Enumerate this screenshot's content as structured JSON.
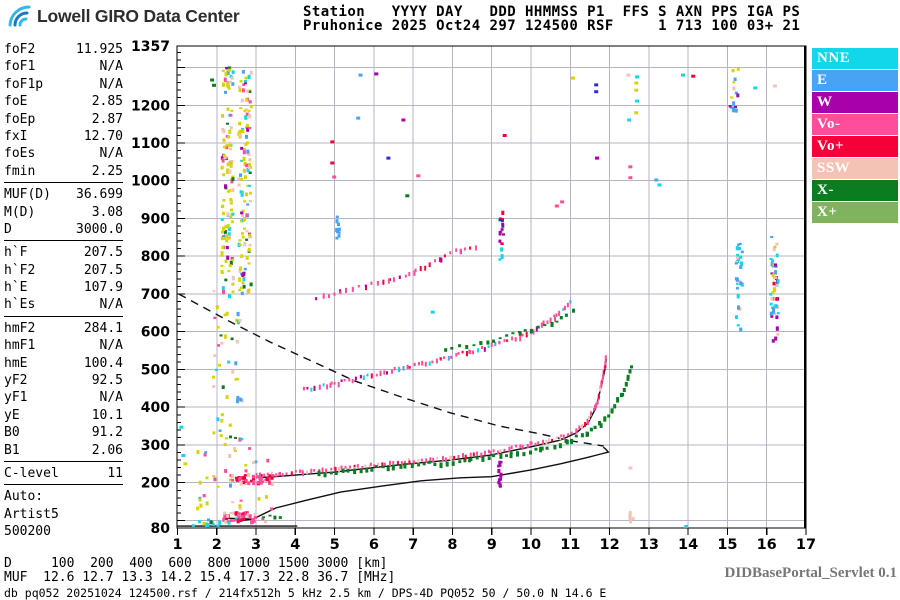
{
  "header": {
    "logo_text": "Lowell GIRO Data Center",
    "station_columns": "Station   YYYY DAY   DDD HHMMSS P1  FFS S AXN PPS IGA PS",
    "station_values": "Pruhonice 2025 Oct24 297 124500 RSF     1 713 100 03+ 21"
  },
  "params": {
    "groups": [
      [
        {
          "label": "foF2",
          "value": "11.925"
        },
        {
          "label": "foF1",
          "value": "N/A"
        },
        {
          "label": "foF1p",
          "value": "N/A"
        },
        {
          "label": "foE",
          "value": "2.85"
        },
        {
          "label": "foEp",
          "value": "2.87"
        },
        {
          "label": "fxI",
          "value": "12.70"
        },
        {
          "label": "foEs",
          "value": "N/A"
        },
        {
          "label": "fmin",
          "value": "2.25"
        }
      ],
      [
        {
          "label": "MUF(D)",
          "value": "36.699"
        },
        {
          "label": "M(D)",
          "value": "3.08"
        },
        {
          "label": "D",
          "value": "3000.0"
        }
      ],
      [
        {
          "label": "h`F",
          "value": "207.5"
        },
        {
          "label": "h`F2",
          "value": "207.5"
        },
        {
          "label": "h`E",
          "value": "107.9"
        },
        {
          "label": "h`Es",
          "value": "N/A"
        }
      ],
      [
        {
          "label": "hmF2",
          "value": "284.1"
        },
        {
          "label": "hmF1",
          "value": "N/A"
        },
        {
          "label": "hmE",
          "value": "100.4"
        },
        {
          "label": "yF2",
          "value": "92.5"
        },
        {
          "label": "yF1",
          "value": "N/A"
        },
        {
          "label": "yE",
          "value": "10.1"
        },
        {
          "label": "B0",
          "value": "91.2"
        },
        {
          "label": "B1",
          "value": "2.06"
        }
      ],
      [
        {
          "label": "C-level",
          "value": "11"
        }
      ]
    ],
    "footer_lines": [
      "Auto:",
      "Artist5",
      "500200"
    ]
  },
  "legend": {
    "items": [
      {
        "label": "NNE",
        "color": "#12d6e9"
      },
      {
        "label": "E",
        "color": "#47a3f5"
      },
      {
        "label": "W",
        "color": "#a800ab"
      },
      {
        "label": "Vo-",
        "color": "#ff4d9b"
      },
      {
        "label": "Vo+",
        "color": "#f50039"
      },
      {
        "label": "SSW",
        "color": "#f4c3b6"
      },
      {
        "label": "X-",
        "color": "#0a7d20"
      },
      {
        "label": "X+",
        "color": "#81b25d"
      }
    ]
  },
  "footer": {
    "d_label": "D",
    "d_values": [
      100,
      200,
      400,
      600,
      800,
      1000,
      1500,
      3000
    ],
    "d_unit": "[km]",
    "muf_label": "MUF",
    "muf_values": [
      "12.6",
      "12.7",
      "13.3",
      "14.2",
      "15.4",
      "17.3",
      "22.8",
      "36.7"
    ],
    "muf_unit": "[MHz]",
    "info_line": "db pq052 20251024 124500.rsf / 214fx512h 5 kHz 2.5 km / DPS-4D PQ052 50 / 50.0 N 14.6 E",
    "servlet": "DIDBasePortal_Servlet 0.1"
  },
  "chart_data": {
    "type": "scatter",
    "title": "Pruhonice DPS-4D ionogram 2025 Oct24 (297) 124500",
    "xlabel": "[MHz]",
    "ylabel": "[km]",
    "xlim": [
      1,
      17
    ],
    "ylim": [
      80,
      1357
    ],
    "grid": true,
    "grid_color": "#b4b6c6",
    "legend_position": "right",
    "x_ticks": [
      1,
      2,
      3,
      4,
      5,
      6,
      7,
      8,
      9,
      10,
      11,
      12,
      13,
      14,
      15,
      16,
      17
    ],
    "y_tick_labels": [
      1357,
      1200,
      1100,
      1000,
      900,
      800,
      700,
      600,
      500,
      400,
      300,
      200,
      80
    ],
    "colors": {
      "yellow": "#d8d400",
      "cyan": "#17d4e8",
      "blue": "#47a3f5",
      "pink": "#ff4d9b",
      "crimson": "#f50039",
      "salmon": "#f4c3b6",
      "green": "#0a7d20",
      "lgreen": "#81b25d",
      "magenta": "#a800ab",
      "navy": "#3030c0"
    },
    "lines": [
      {
        "name": "o-trace-autoscaled",
        "style": "solid",
        "points": [
          [
            3.0,
            213
          ],
          [
            3.6,
            217
          ],
          [
            4.2,
            222
          ],
          [
            5.0,
            228
          ],
          [
            5.9,
            239
          ],
          [
            6.9,
            250
          ],
          [
            7.95,
            260
          ],
          [
            8.95,
            273
          ],
          [
            10.0,
            295
          ],
          [
            10.75,
            313
          ],
          [
            11.15,
            332
          ],
          [
            11.45,
            358
          ],
          [
            11.65,
            398
          ],
          [
            11.8,
            459
          ],
          [
            11.88,
            500
          ],
          [
            11.92,
            528
          ]
        ]
      },
      {
        "name": "true-height-profile",
        "style": "solid",
        "points": [
          [
            2.6,
            99
          ],
          [
            2.93,
            104
          ],
          [
            3.5,
            133
          ],
          [
            4.3,
            154
          ],
          [
            5.15,
            175
          ],
          [
            6.2,
            191
          ],
          [
            7.2,
            205
          ],
          [
            8.2,
            213
          ],
          [
            9.0,
            216
          ],
          [
            10.0,
            234
          ],
          [
            10.75,
            250
          ],
          [
            11.4,
            266
          ],
          [
            11.78,
            276
          ],
          [
            11.97,
            281
          ],
          [
            11.9,
            289
          ],
          [
            11.84,
            294
          ]
        ]
      },
      {
        "name": "baseline",
        "style": "solid",
        "points": [
          [
            1.0,
            85
          ],
          [
            4.05,
            85
          ]
        ]
      },
      {
        "name": "e-trace-autoscaled",
        "style": "solid",
        "points": [
          [
            2.17,
            106
          ],
          [
            2.93,
            104
          ]
        ]
      },
      {
        "name": "muf3000-transmission-curve",
        "style": "dashed",
        "points": [
          [
            1.03,
            700
          ],
          [
            1.6,
            668
          ],
          [
            2.35,
            626
          ],
          [
            3.35,
            573
          ],
          [
            4.4,
            523
          ],
          [
            5.5,
            470
          ],
          [
            6.7,
            427
          ],
          [
            7.95,
            385
          ],
          [
            9.2,
            350
          ],
          [
            10.25,
            329
          ],
          [
            11.0,
            311
          ],
          [
            11.5,
            303
          ],
          [
            11.85,
            297
          ]
        ]
      }
    ],
    "dot_traces": [
      {
        "name": "f-trace-o-echoes",
        "step": 4,
        "dot": [
          2,
          4
        ],
        "colors": [
          "pink",
          "pink",
          "pink",
          "pink",
          "crimson",
          "pink",
          "salmon",
          "pink"
        ],
        "points": [
          [
            3.0,
            219
          ],
          [
            3.6,
            223
          ],
          [
            4.2,
            228
          ],
          [
            5.0,
            234
          ],
          [
            5.9,
            245
          ],
          [
            6.9,
            256
          ],
          [
            7.95,
            266
          ],
          [
            8.95,
            279
          ],
          [
            10.0,
            301
          ],
          [
            10.75,
            319
          ],
          [
            11.15,
            338
          ],
          [
            11.45,
            364
          ],
          [
            11.65,
            404
          ],
          [
            11.8,
            465
          ],
          [
            11.88,
            506
          ],
          [
            11.92,
            530
          ]
        ]
      },
      {
        "name": "f-trace-x-echoes",
        "step": 6,
        "dot": [
          3,
          4
        ],
        "colors": [
          "green"
        ],
        "points": [
          [
            4.6,
            224
          ],
          [
            5.5,
            231
          ],
          [
            6.5,
            242
          ],
          [
            7.4,
            249
          ],
          [
            8.45,
            260
          ],
          [
            9.5,
            273
          ],
          [
            10.25,
            289
          ],
          [
            10.9,
            307
          ],
          [
            11.4,
            331
          ],
          [
            11.75,
            355
          ],
          [
            12.05,
            392
          ],
          [
            12.3,
            434
          ],
          [
            12.45,
            478
          ],
          [
            12.55,
            506
          ]
        ]
      },
      {
        "name": "second-order-o-trace",
        "step": 4,
        "dot": [
          2,
          4
        ],
        "colors": [
          "pink",
          "pink",
          "pink",
          "crimson",
          "pink",
          "cyan",
          "blue",
          "pink",
          "magenta"
        ],
        "points": [
          [
            4.2,
            446
          ],
          [
            4.9,
            459
          ],
          [
            5.65,
            477
          ],
          [
            6.65,
            501
          ],
          [
            7.7,
            525
          ],
          [
            8.45,
            546
          ],
          [
            9.2,
            568
          ],
          [
            10.0,
            599
          ],
          [
            10.6,
            637
          ],
          [
            11.0,
            679
          ]
        ]
      },
      {
        "name": "second-order-x-trace",
        "step": 7,
        "dot": [
          3,
          3
        ],
        "colors": [
          "green"
        ],
        "points": [
          [
            7.8,
            552
          ],
          [
            8.7,
            568
          ],
          [
            9.7,
            594
          ],
          [
            10.5,
            618
          ],
          [
            11.05,
            653
          ]
        ]
      },
      {
        "name": "third-order-o-trace",
        "step": 6,
        "dot": [
          2,
          4
        ],
        "colors": [
          "pink",
          "pink",
          "crimson",
          "pink",
          "magenta"
        ],
        "points": [
          [
            4.55,
            689
          ],
          [
            5.15,
            705
          ],
          [
            5.8,
            721
          ],
          [
            6.4,
            734
          ],
          [
            7.05,
            758
          ],
          [
            7.7,
            795
          ],
          [
            8.2,
            817
          ],
          [
            8.6,
            827
          ]
        ]
      },
      {
        "name": "e-trace-x-echoes",
        "step": 5,
        "dot": [
          3,
          3
        ],
        "colors": [
          "green"
        ],
        "points": [
          [
            3.2,
            109
          ],
          [
            3.6,
            109
          ]
        ]
      }
    ],
    "noise_boxes": [
      {
        "name": "rfi-column-1",
        "f": [
          2.13,
          2.42
        ],
        "h": [
          710,
          1300
        ],
        "n": 120,
        "colors": [
          "yellow",
          "yellow",
          "yellow",
          "yellow",
          "yellow",
          "salmon",
          "salmon",
          "cyan",
          "blue",
          "green",
          "magenta",
          "pink"
        ]
      },
      {
        "name": "rfi-column-2",
        "f": [
          2.56,
          2.88
        ],
        "h": [
          695,
          1290
        ],
        "n": 120,
        "colors": [
          "yellow",
          "yellow",
          "yellow",
          "yellow",
          "yellow",
          "salmon",
          "salmon",
          "cyan",
          "blue",
          "green",
          "magenta",
          "pink"
        ]
      },
      {
        "name": "rfi-column-sparse",
        "f": [
          1.9,
          2.65
        ],
        "h": [
          300,
          710
        ],
        "n": 50,
        "colors": [
          "yellow",
          "yellow",
          "yellow",
          "salmon",
          "cyan",
          "blue",
          "pink",
          "green"
        ]
      },
      {
        "name": "lowband-scatter",
        "f": [
          1.35,
          3.4
        ],
        "h": [
          85,
          300
        ],
        "n": 45,
        "colors": [
          "yellow",
          "yellow",
          "cyan",
          "blue",
          "salmon",
          "pink",
          "green"
        ]
      },
      {
        "name": "f-trace-start-cluster",
        "f": [
          2.4,
          3.45
        ],
        "h": [
          195,
          222
        ],
        "n": 50,
        "colors": [
          "pink",
          "pink",
          "pink",
          "crimson",
          "salmon"
        ]
      },
      {
        "name": "e-trace-cluster",
        "f": [
          2.15,
          3.0
        ],
        "h": [
          95,
          124
        ],
        "n": 42,
        "colors": [
          "pink",
          "pink",
          "crimson",
          "pink",
          "salmon"
        ]
      },
      {
        "name": "noise-15mhz-column",
        "f": [
          15.22,
          15.38
        ],
        "h": [
          590,
          835
        ],
        "n": 28,
        "colors": [
          "cyan",
          "cyan",
          "cyan",
          "blue",
          "blue",
          "salmon"
        ]
      },
      {
        "name": "noise-16mhz-column",
        "f": [
          16.1,
          16.3
        ],
        "h": [
          575,
          850
        ],
        "n": 48,
        "colors": [
          "cyan",
          "cyan",
          "magenta",
          "magenta",
          "yellow",
          "yellow",
          "salmon",
          "crimson",
          "blue"
        ]
      },
      {
        "name": "noise-topright-cluster",
        "f": [
          15.05,
          15.32
        ],
        "h": [
          1185,
          1302
        ],
        "n": 15,
        "colors": [
          "blue",
          "blue",
          "yellow",
          "salmon",
          "magenta"
        ]
      },
      {
        "name": "column-9mhz-high",
        "f": [
          9.2,
          9.3
        ],
        "h": [
          820,
          918
        ],
        "n": 14,
        "colors": [
          "magenta",
          "magenta",
          "crimson",
          "navy"
        ]
      },
      {
        "name": "column-9mhz-cyan",
        "f": [
          9.2,
          9.27
        ],
        "h": [
          788,
          820
        ],
        "n": 4,
        "colors": [
          "cyan"
        ]
      },
      {
        "name": "column-5mhz-blue",
        "f": [
          5.05,
          5.12
        ],
        "h": [
          836,
          912
        ],
        "n": 11,
        "colors": [
          "blue"
        ]
      },
      {
        "name": "column-9mhz-low-magenta",
        "f": [
          9.17,
          9.24
        ],
        "h": [
          191,
          284
        ],
        "n": 13,
        "colors": [
          "magenta"
        ]
      },
      {
        "name": "column-12.5mhz-salmon",
        "f": [
          12.5,
          12.6
        ],
        "h": [
          88,
          126
        ],
        "n": 6,
        "colors": [
          "salmon"
        ]
      },
      {
        "name": "below-e-blue",
        "f": [
          1.35,
          2.1
        ],
        "h": [
          82,
          102
        ],
        "n": 9,
        "colors": [
          "blue",
          "cyan",
          "green"
        ]
      }
    ],
    "spot_dots": [
      [
        5.66,
        1280,
        "blue"
      ],
      [
        5.6,
        1166,
        "blue"
      ],
      [
        6.06,
        1283,
        "magenta"
      ],
      [
        6.75,
        1161,
        "magenta"
      ],
      [
        6.37,
        1060,
        "navy"
      ],
      [
        4.94,
        1103,
        "crimson"
      ],
      [
        4.94,
        1047,
        "crimson"
      ],
      [
        4.99,
        1010,
        "pink"
      ],
      [
        7.13,
        1013,
        "pink"
      ],
      [
        6.85,
        960,
        "green"
      ],
      [
        11.07,
        1272,
        "yellow"
      ],
      [
        11.66,
        1254,
        "navy"
      ],
      [
        11.66,
        1236,
        "navy"
      ],
      [
        11.68,
        1060,
        "magenta"
      ],
      [
        12.48,
        1280,
        "salmon"
      ],
      [
        12.7,
        1275,
        "cyan"
      ],
      [
        12.68,
        1259,
        "yellow"
      ],
      [
        12.68,
        1240,
        "yellow"
      ],
      [
        12.7,
        1211,
        "cyan"
      ],
      [
        12.68,
        1180,
        "yellow"
      ],
      [
        12.5,
        1161,
        "cyan"
      ],
      [
        13.87,
        1280,
        "cyan"
      ],
      [
        14.13,
        1277,
        "crimson"
      ],
      [
        12.53,
        1037,
        "pink"
      ],
      [
        12.53,
        1008,
        "pink"
      ],
      [
        13.19,
        1002,
        "blue"
      ],
      [
        13.27,
        989,
        "cyan"
      ],
      [
        12.53,
        239,
        "salmon"
      ],
      [
        13.95,
        84,
        "cyan"
      ],
      [
        10.66,
        933,
        "pink"
      ],
      [
        10.79,
        944,
        "pink"
      ],
      [
        1.88,
        1267,
        "green"
      ],
      [
        1.93,
        1253,
        "green"
      ],
      [
        15.71,
        1246,
        "cyan"
      ],
      [
        16.21,
        1251,
        "salmon"
      ],
      [
        9.33,
        1120,
        "crimson"
      ],
      [
        7.5,
        652,
        "cyan"
      ],
      [
        1.1,
        347,
        "cyan"
      ],
      [
        1.15,
        272,
        "cyan"
      ],
      [
        1.2,
        250,
        "yellow"
      ]
    ]
  }
}
